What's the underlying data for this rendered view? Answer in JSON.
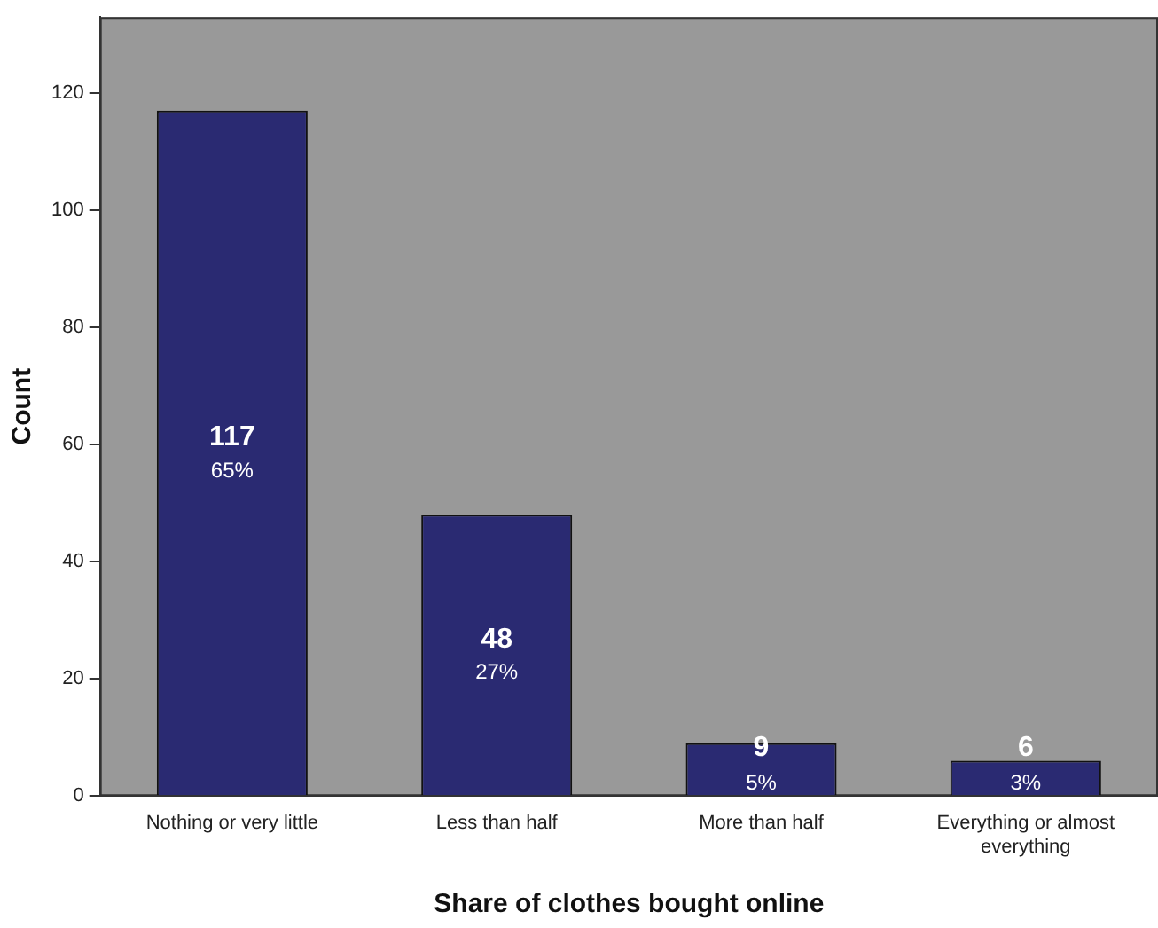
{
  "chart_data": {
    "type": "bar",
    "xlabel": "Share of clothes bought online",
    "ylabel": "Count",
    "categories": [
      "Nothing or very little",
      "Less than half",
      "More than half",
      "Everything or almost everything"
    ],
    "values": [
      117,
      48,
      9,
      6
    ],
    "color": "#2a2a72",
    "ylim": [
      0,
      133
    ],
    "yticks": [
      0,
      20,
      40,
      60,
      80,
      100,
      120
    ],
    "grid": false,
    "legend": false,
    "data_labels": true,
    "annotations": [
      "65%",
      "27%",
      "5%",
      "3%"
    ]
  }
}
